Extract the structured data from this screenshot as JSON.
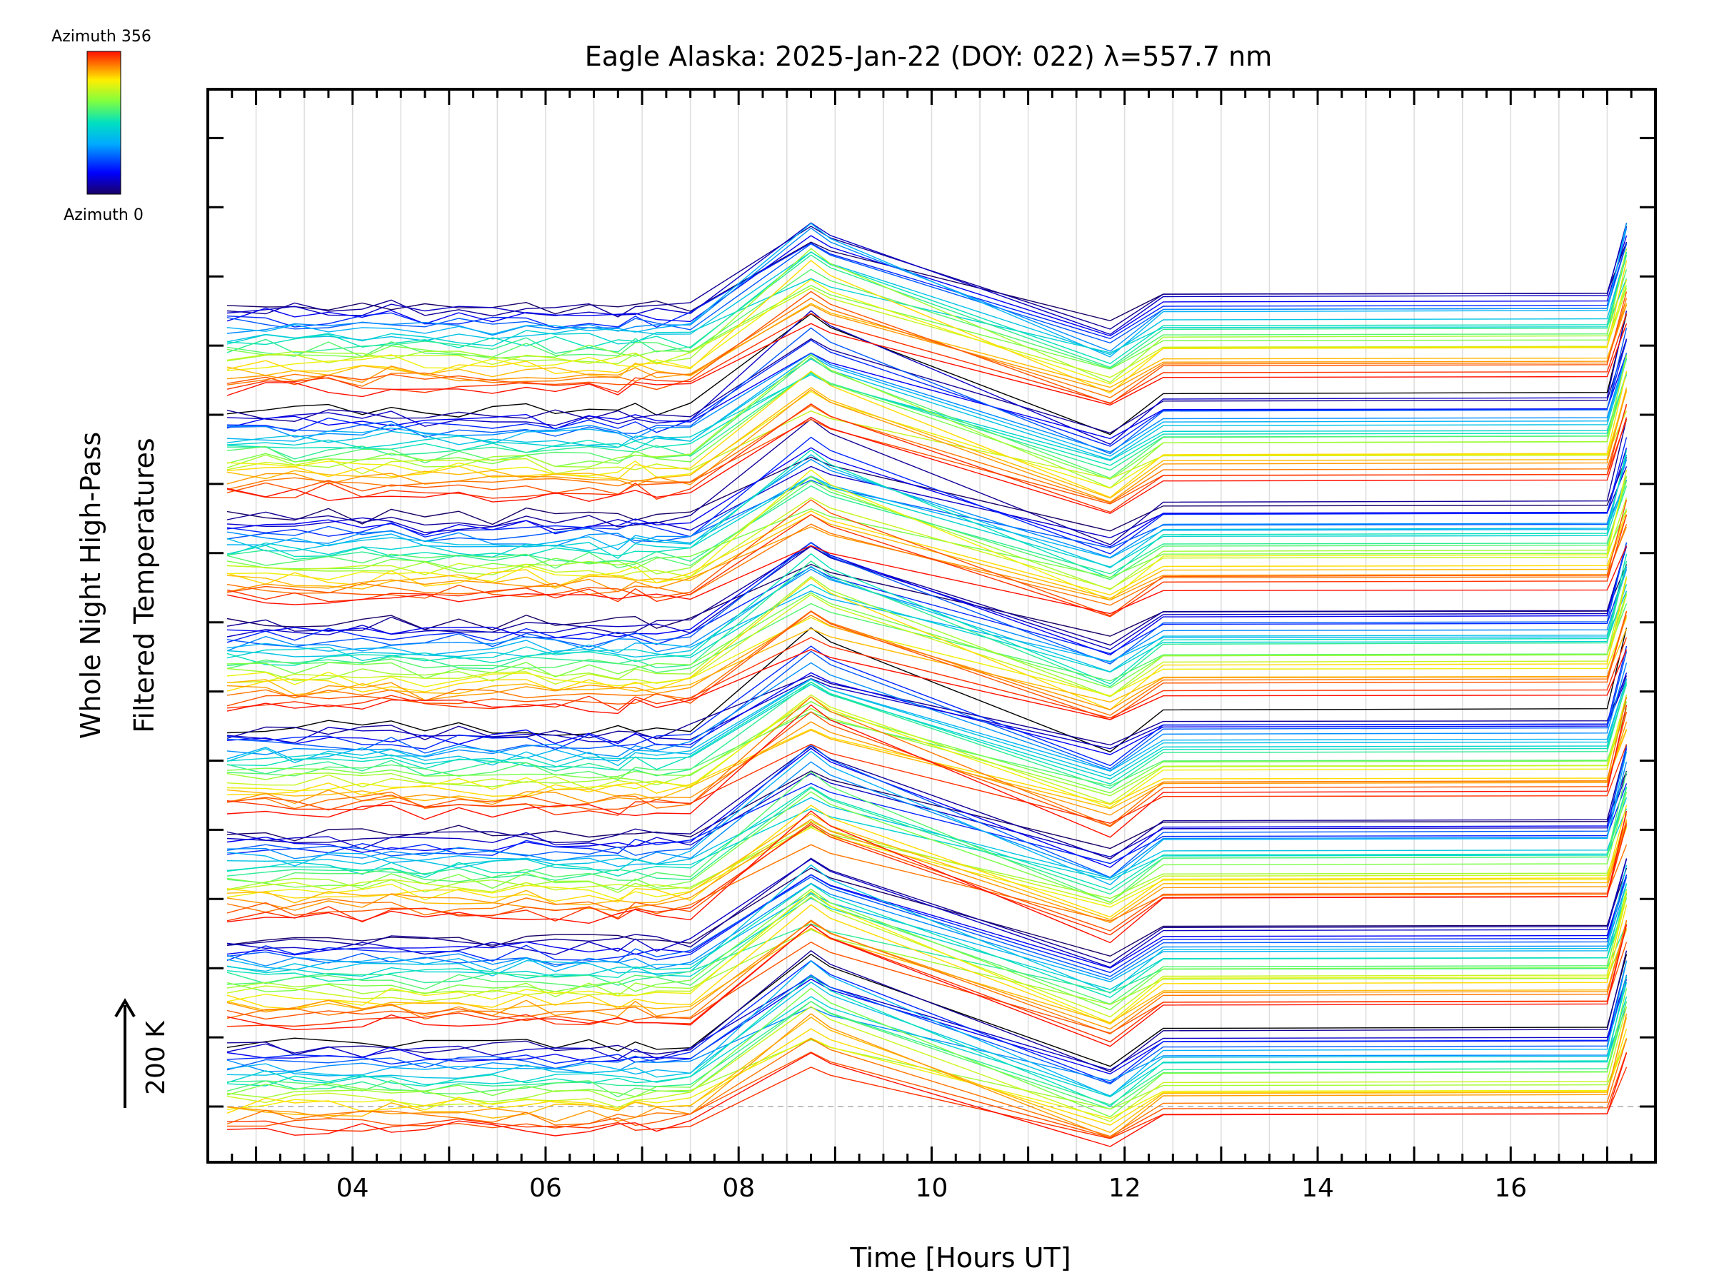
{
  "chart_data": {
    "type": "line",
    "title": "Eagle Alaska: 2025-Jan-22 (DOY: 022) λ=557.7 nm",
    "xlabel": "Time [Hours UT]",
    "ylabel": [
      "Whole Night High-Pass",
      "Filtered Temperatures"
    ],
    "xlim": [
      2.5,
      17.5
    ],
    "x_ticks": [
      "04",
      "06",
      "08",
      "10",
      "12",
      "14",
      "16"
    ],
    "x_tick_values": [
      4,
      6,
      8,
      10,
      12,
      14,
      16
    ],
    "grid": true,
    "scale_bar": {
      "label": "200 K",
      "value": 200
    },
    "colorbar": {
      "top_label": "Azimuth 356",
      "bottom_label": "Azimuth 0",
      "colormap": "rainbow",
      "colors": [
        "#1a0066",
        "#0000ff",
        "#00aaff",
        "#00e0c0",
        "#7fff40",
        "#ffee00",
        "#ff8000",
        "#ff1000"
      ]
    },
    "series_note": "Each trace is one azimuth (0–356°) offset vertically; 8 stacked zenith-angle bands, ~23 azimuths each",
    "x": [
      2.7,
      3.1,
      3.4,
      3.75,
      4.1,
      4.4,
      4.75,
      5.1,
      5.45,
      5.8,
      6.1,
      6.45,
      6.75,
      6.93,
      7.15,
      7.5,
      8.75,
      8.95,
      11.85,
      12.4,
      17.0,
      17.2
    ],
    "shape_K": [
      0,
      3,
      -2,
      4,
      -3,
      6,
      -4,
      3,
      -2,
      5,
      -3,
      2,
      -5,
      4,
      -2,
      3,
      250,
      215,
      -60,
      45,
      48,
      250
    ],
    "bands": 8,
    "band_offset_K": 290,
    "traces_per_band": 24
  }
}
